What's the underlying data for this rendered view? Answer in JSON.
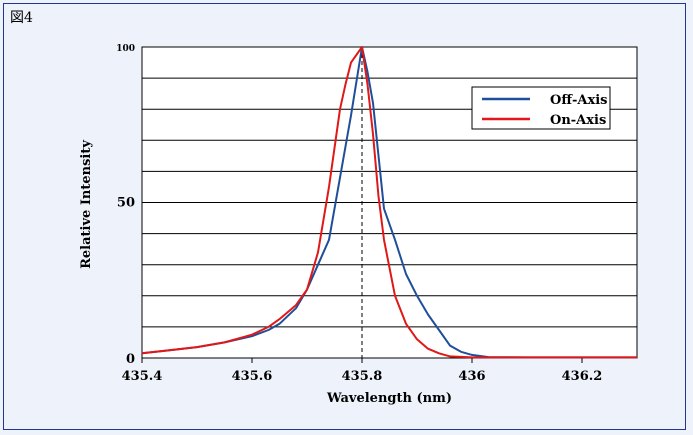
{
  "figure_label": "図4",
  "chart_data": {
    "type": "line",
    "xlabel": "Wavelength (nm)",
    "ylabel": "Relative Intensity",
    "xlim": [
      435.4,
      436.3
    ],
    "ylim": [
      0,
      100
    ],
    "x_ticks": [
      "435.4",
      "435.6",
      "435.8",
      "436",
      "436.2"
    ],
    "y_ticks": [
      "0",
      "50",
      "100"
    ],
    "grid": "horizontal",
    "reference_line_x": 435.8,
    "legend_position": "top-right",
    "series": [
      {
        "name": "Off-Axis",
        "color": "#1f4f9a",
        "points": [
          [
            435.4,
            1.5
          ],
          [
            435.45,
            2.5
          ],
          [
            435.5,
            3.5
          ],
          [
            435.55,
            5
          ],
          [
            435.6,
            7
          ],
          [
            435.63,
            9
          ],
          [
            435.65,
            11
          ],
          [
            435.68,
            16
          ],
          [
            435.7,
            22
          ],
          [
            435.72,
            30
          ],
          [
            435.74,
            38
          ],
          [
            435.76,
            58
          ],
          [
            435.78,
            78
          ],
          [
            435.8,
            100
          ],
          [
            435.81,
            92
          ],
          [
            435.82,
            82
          ],
          [
            435.83,
            65
          ],
          [
            435.84,
            48
          ],
          [
            435.86,
            38
          ],
          [
            435.88,
            27
          ],
          [
            435.9,
            20
          ],
          [
            435.92,
            14
          ],
          [
            435.94,
            9
          ],
          [
            435.96,
            4
          ],
          [
            435.98,
            2
          ],
          [
            436.0,
            1
          ],
          [
            436.03,
            0.3
          ],
          [
            436.1,
            0.2
          ],
          [
            436.3,
            0.2
          ]
        ]
      },
      {
        "name": "On-Axis",
        "color": "#e01818",
        "points": [
          [
            435.4,
            1.5
          ],
          [
            435.45,
            2.5
          ],
          [
            435.5,
            3.5
          ],
          [
            435.55,
            5
          ],
          [
            435.6,
            7.5
          ],
          [
            435.63,
            10
          ],
          [
            435.65,
            12.5
          ],
          [
            435.68,
            17
          ],
          [
            435.7,
            22
          ],
          [
            435.72,
            34
          ],
          [
            435.74,
            55
          ],
          [
            435.76,
            80
          ],
          [
            435.77,
            88
          ],
          [
            435.78,
            95
          ],
          [
            435.8,
            100
          ],
          [
            435.81,
            88
          ],
          [
            435.82,
            72
          ],
          [
            435.83,
            52
          ],
          [
            435.84,
            38
          ],
          [
            435.86,
            20
          ],
          [
            435.88,
            11
          ],
          [
            435.9,
            6
          ],
          [
            435.92,
            3
          ],
          [
            435.94,
            1.5
          ],
          [
            435.96,
            0.5
          ],
          [
            436.0,
            0.2
          ],
          [
            436.3,
            0.2
          ]
        ]
      }
    ]
  }
}
